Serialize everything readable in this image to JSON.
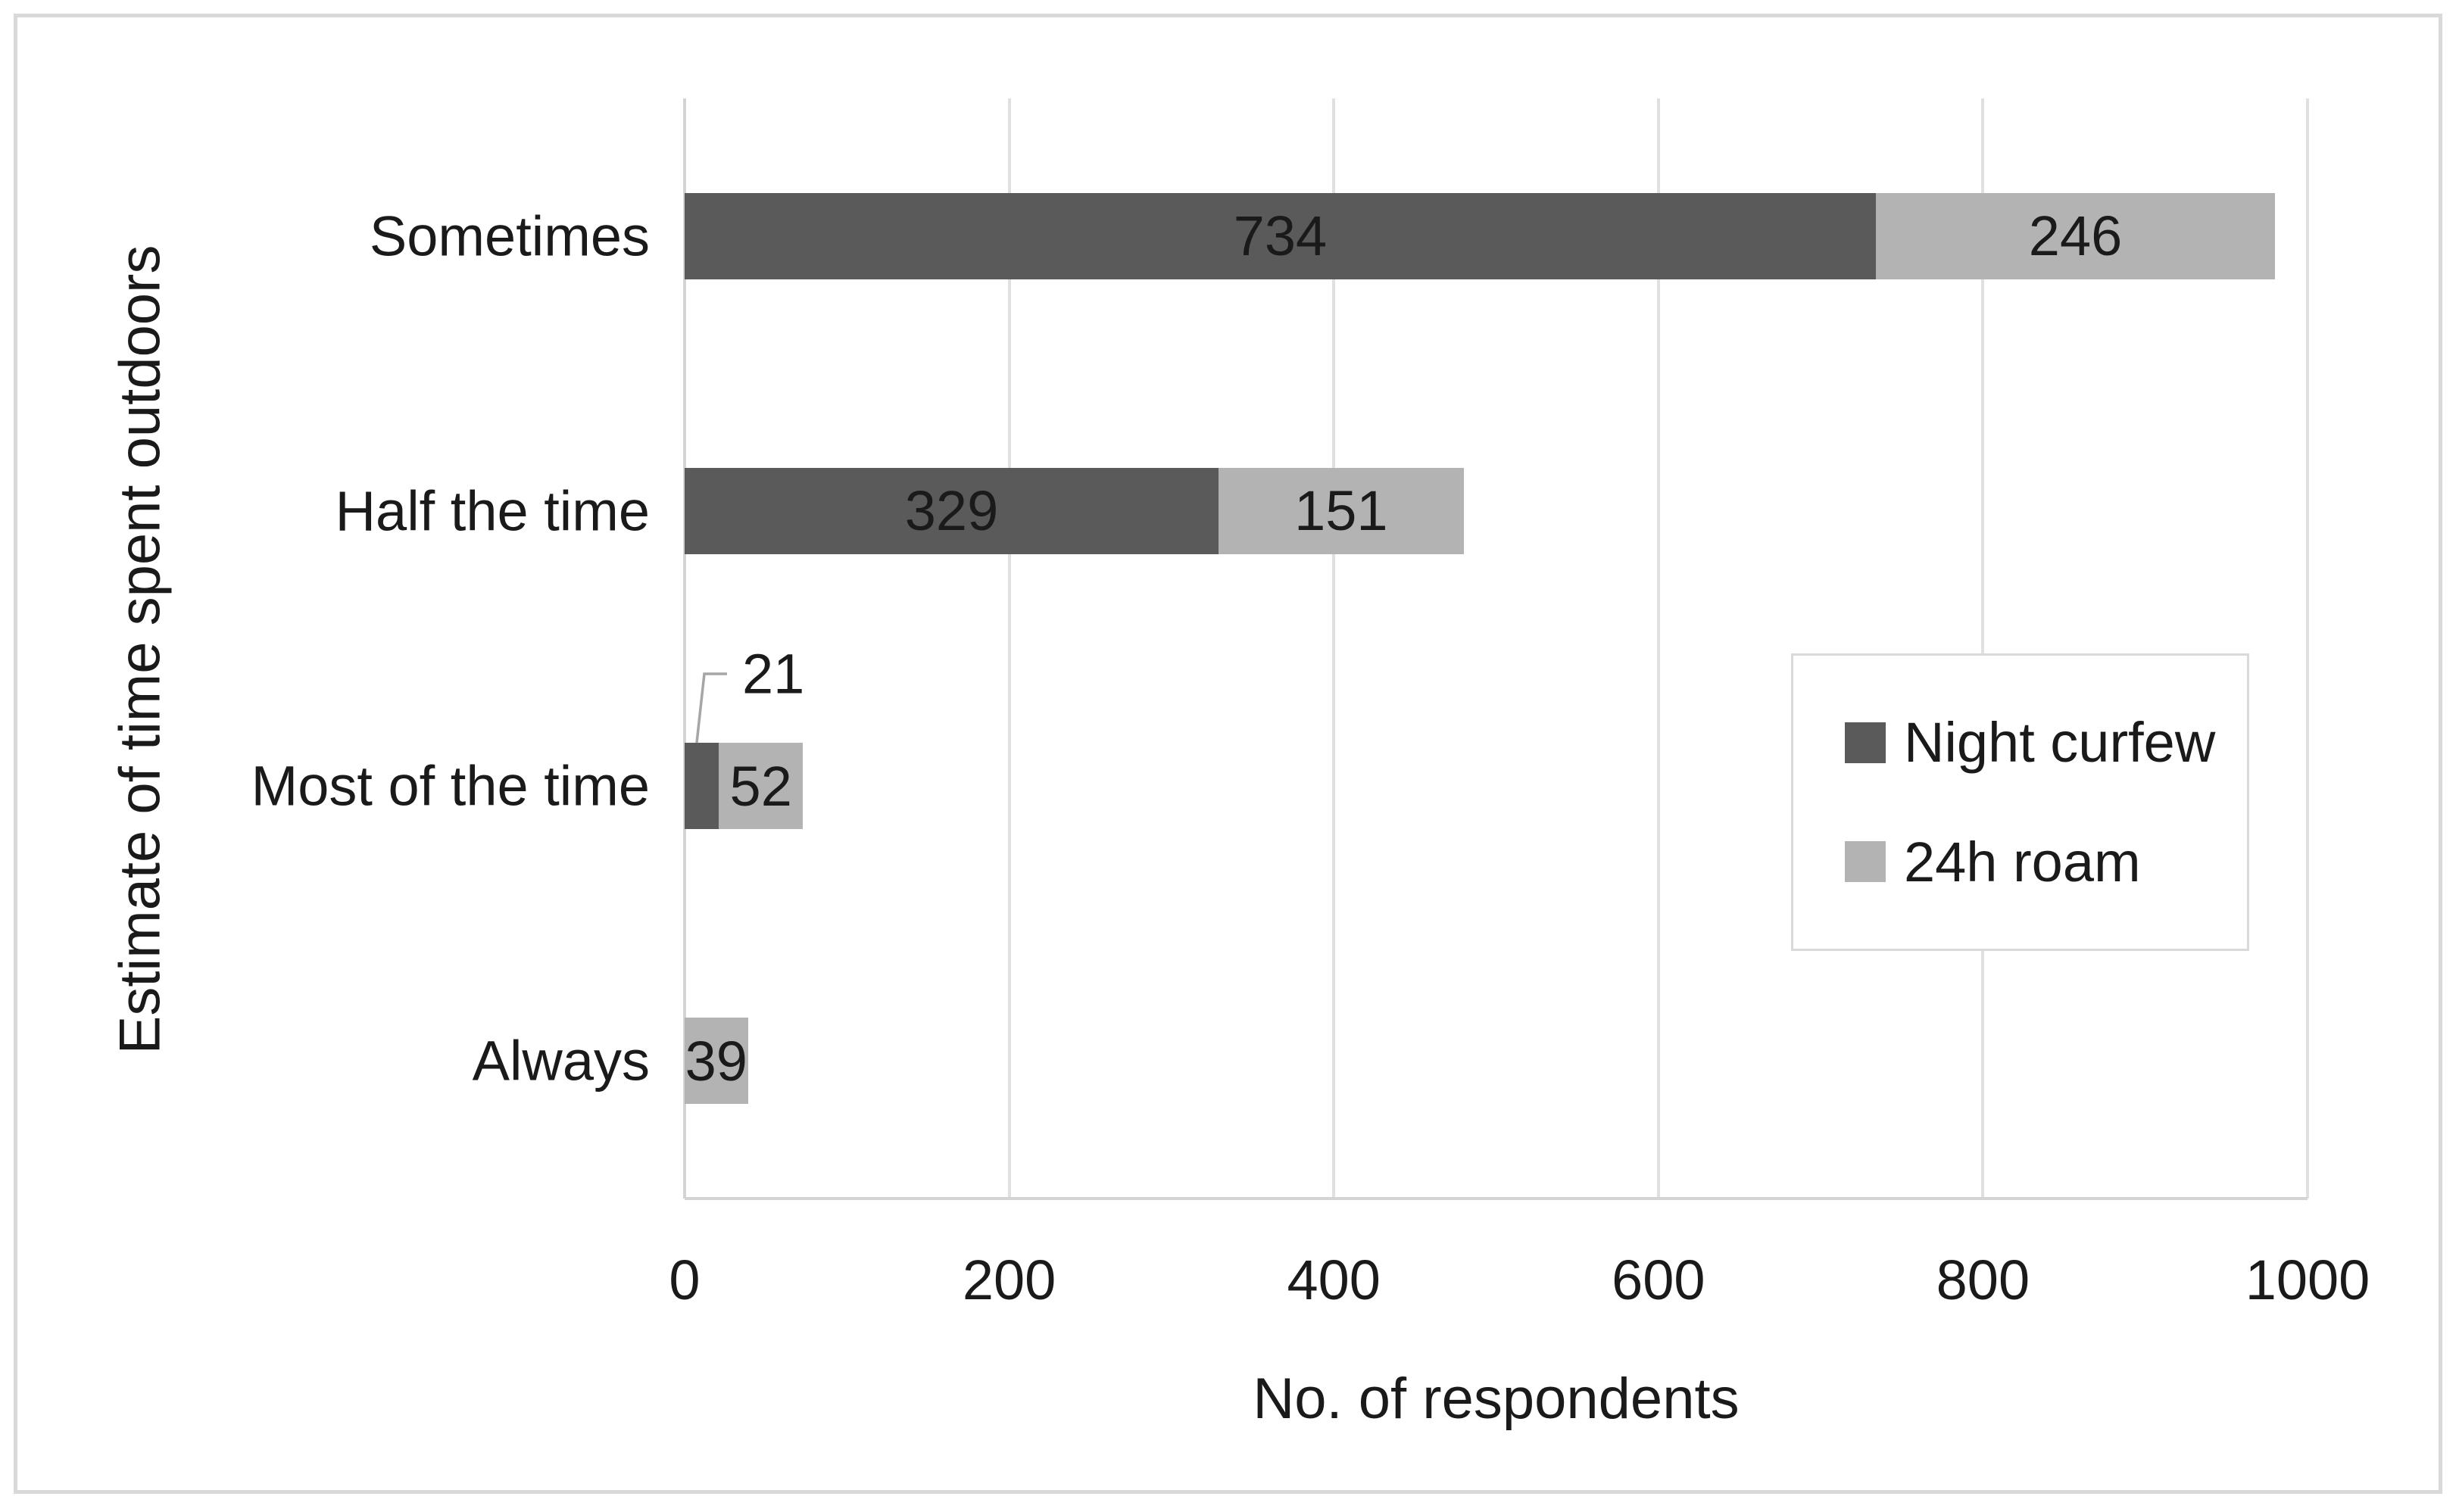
{
  "chart_data": {
    "type": "bar",
    "orientation": "horizontal",
    "stacked": true,
    "categories": [
      "Sometimes",
      "Half the time",
      "Most of the time",
      "Always"
    ],
    "series": [
      {
        "name": "Night curfew",
        "color": "#5a5a5a",
        "values": [
          734,
          329,
          21,
          0
        ]
      },
      {
        "name": "24h roam",
        "color": "#b3b3b3",
        "values": [
          246,
          151,
          52,
          39
        ]
      }
    ],
    "xlabel": "No. of respondents",
    "ylabel": "Estimate of time spent outdoors",
    "xlim": [
      0,
      1000
    ],
    "xticks": [
      0,
      200,
      400,
      600,
      800,
      1000
    ],
    "grid": true,
    "data_labels_shown": true,
    "callout": {
      "category": "Most of the time",
      "series": "Night curfew",
      "value": 21
    },
    "legend_position": "middle-right"
  },
  "style_colors": {
    "gridline": "#e0e0e0",
    "axis_line": "#d4d4d4",
    "figure_border": "#d9d9d9",
    "legend_border": "#d9d9d9",
    "leader_line": "#a6a6a6",
    "text": "#1a1a1a",
    "background": "#ffffff"
  }
}
